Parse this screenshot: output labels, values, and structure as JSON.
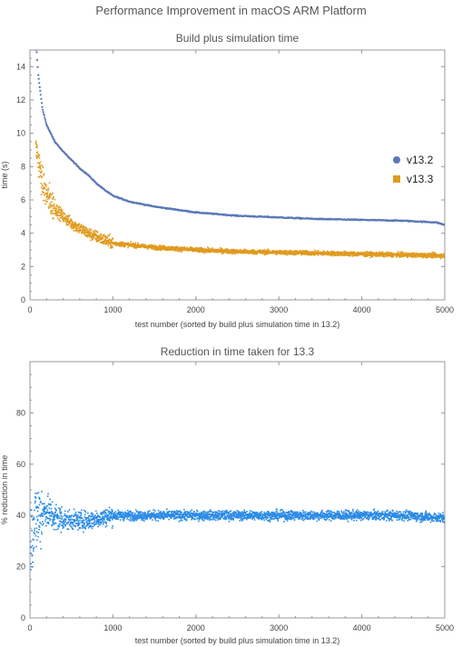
{
  "title": "Performance Improvement in macOS ARM Platform",
  "colors": {
    "v132": "#5b79b8",
    "v133": "#e09a1e",
    "reduction": "#2a8ae6",
    "frame": "#999999"
  },
  "chart_data": [
    {
      "type": "scatter",
      "title": "Build plus simulation time",
      "xlabel": "test number (sorted by build plus simulation time in 13.2)",
      "ylabel": "time (s)",
      "xlim": [
        0,
        5000
      ],
      "ylim": [
        0,
        15
      ],
      "xticks": [
        0,
        1000,
        2000,
        3000,
        4000,
        5000
      ],
      "yticks": [
        0,
        2,
        4,
        6,
        8,
        10,
        12,
        14
      ],
      "legend_position": "right",
      "series": [
        {
          "name": "v13.2",
          "marker": "circle",
          "x": [
            80,
            100,
            150,
            200,
            300,
            400,
            500,
            600,
            700,
            800,
            900,
            1000,
            1200,
            1500,
            2000,
            2500,
            3000,
            3500,
            4000,
            4500,
            4900,
            5000
          ],
          "y": [
            15,
            13.5,
            11.5,
            10.5,
            9.5,
            8.9,
            8.4,
            7.9,
            7.5,
            7.0,
            6.6,
            6.25,
            5.9,
            5.6,
            5.25,
            5.05,
            4.95,
            4.85,
            4.8,
            4.75,
            4.65,
            4.5
          ]
        },
        {
          "name": "v13.3",
          "marker": "square",
          "x": [
            80,
            150,
            200,
            300,
            400,
            500,
            600,
            700,
            800,
            900,
            1000,
            1500,
            2000,
            2500,
            3000,
            3500,
            4000,
            4500,
            5000
          ],
          "y": [
            9.0,
            7.0,
            6.3,
            5.5,
            5.0,
            4.6,
            4.3,
            4.0,
            3.8,
            3.6,
            3.4,
            3.15,
            3.0,
            2.9,
            2.85,
            2.8,
            2.75,
            2.7,
            2.65
          ]
        }
      ]
    },
    {
      "type": "scatter",
      "title": "Reduction in time taken for 13.3",
      "xlabel": "test number (sorted by build plus simulation time in 13.2)",
      "ylabel": "% reduction in time",
      "xlim": [
        0,
        5000
      ],
      "ylim": [
        0,
        100
      ],
      "xticks": [
        0,
        1000,
        2000,
        3000,
        4000,
        5000
      ],
      "yticks": [
        0,
        20,
        40,
        60,
        80
      ],
      "series": [
        {
          "name": "",
          "x": [
            0,
            50,
            100,
            200,
            300,
            500,
            700,
            1000,
            1500,
            2000,
            2500,
            3000,
            3500,
            4000,
            4500,
            5000
          ],
          "y": [
            30,
            36,
            40,
            42,
            39,
            38,
            38,
            40,
            40,
            40,
            40,
            40,
            40,
            40,
            40,
            39
          ]
        }
      ]
    }
  ]
}
